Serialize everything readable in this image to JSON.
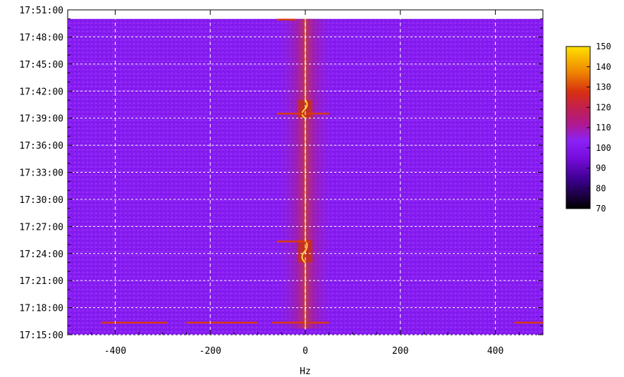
{
  "chart_data": {
    "type": "heatmap",
    "title": "",
    "xlabel": "Hz",
    "ylabel": "",
    "x_range": [
      -500,
      500
    ],
    "y_range": [
      "17:15:00",
      "17:51:00"
    ],
    "data_end_time": "17:50:00",
    "x_ticks": [
      -400,
      -200,
      0,
      200,
      400
    ],
    "x_tick_labels": [
      "-400",
      "-200",
      "0",
      "200",
      "400"
    ],
    "y_ticks": [
      "17:15:00",
      "17:18:00",
      "17:21:00",
      "17:24:00",
      "17:27:00",
      "17:30:00",
      "17:33:00",
      "17:36:00",
      "17:39:00",
      "17:42:00",
      "17:45:00",
      "17:48:00",
      "17:51:00"
    ],
    "grid": true,
    "colorbar": {
      "min": 70,
      "max": 150,
      "ticks": [
        70,
        80,
        90,
        100,
        110,
        120,
        130,
        140,
        150
      ],
      "tick_labels": [
        "70",
        "80",
        "90",
        "100",
        "110",
        "120",
        "130",
        "140",
        "150"
      ],
      "colormap": [
        "#000000",
        "#3d0090",
        "#7a0de0",
        "#8a22f5",
        "#c22050",
        "#d83010",
        "#f08a00",
        "#ffe000"
      ]
    },
    "background_level": 92,
    "features": [
      {
        "name": "carrier",
        "x": 0,
        "t_start": "17:15:40",
        "t_end": "17:50:00",
        "level": 135
      },
      {
        "name": "carrier-halo",
        "x": 0,
        "width_hz": 60,
        "t_start": "17:15:40",
        "t_end": "17:50:00",
        "level": 105
      },
      {
        "name": "burst",
        "x": 0,
        "t_start": "17:39:00",
        "t_end": "17:41:00",
        "level": 140
      },
      {
        "name": "burst",
        "x": 0,
        "t_start": "17:23:00",
        "t_end": "17:25:30",
        "level": 140
      },
      {
        "name": "streak",
        "x_start": -60,
        "x_end": 50,
        "t": "17:39:30",
        "level": 118
      },
      {
        "name": "streak",
        "x_start": -60,
        "x_end": 10,
        "t": "17:25:20",
        "level": 118
      },
      {
        "name": "streak",
        "x_start": -60,
        "x_end": -20,
        "t": "17:49:55",
        "level": 118
      },
      {
        "name": "streak",
        "x_start": -430,
        "x_end": -290,
        "t": "17:16:20",
        "level": 112
      },
      {
        "name": "streak",
        "x_start": -250,
        "x_end": -100,
        "t": "17:16:20",
        "level": 112
      },
      {
        "name": "streak",
        "x_start": -70,
        "x_end": 50,
        "t": "17:16:20",
        "level": 112
      },
      {
        "name": "streak",
        "x_start": 440,
        "x_end": 500,
        "t": "17:16:20",
        "level": 112
      }
    ]
  }
}
